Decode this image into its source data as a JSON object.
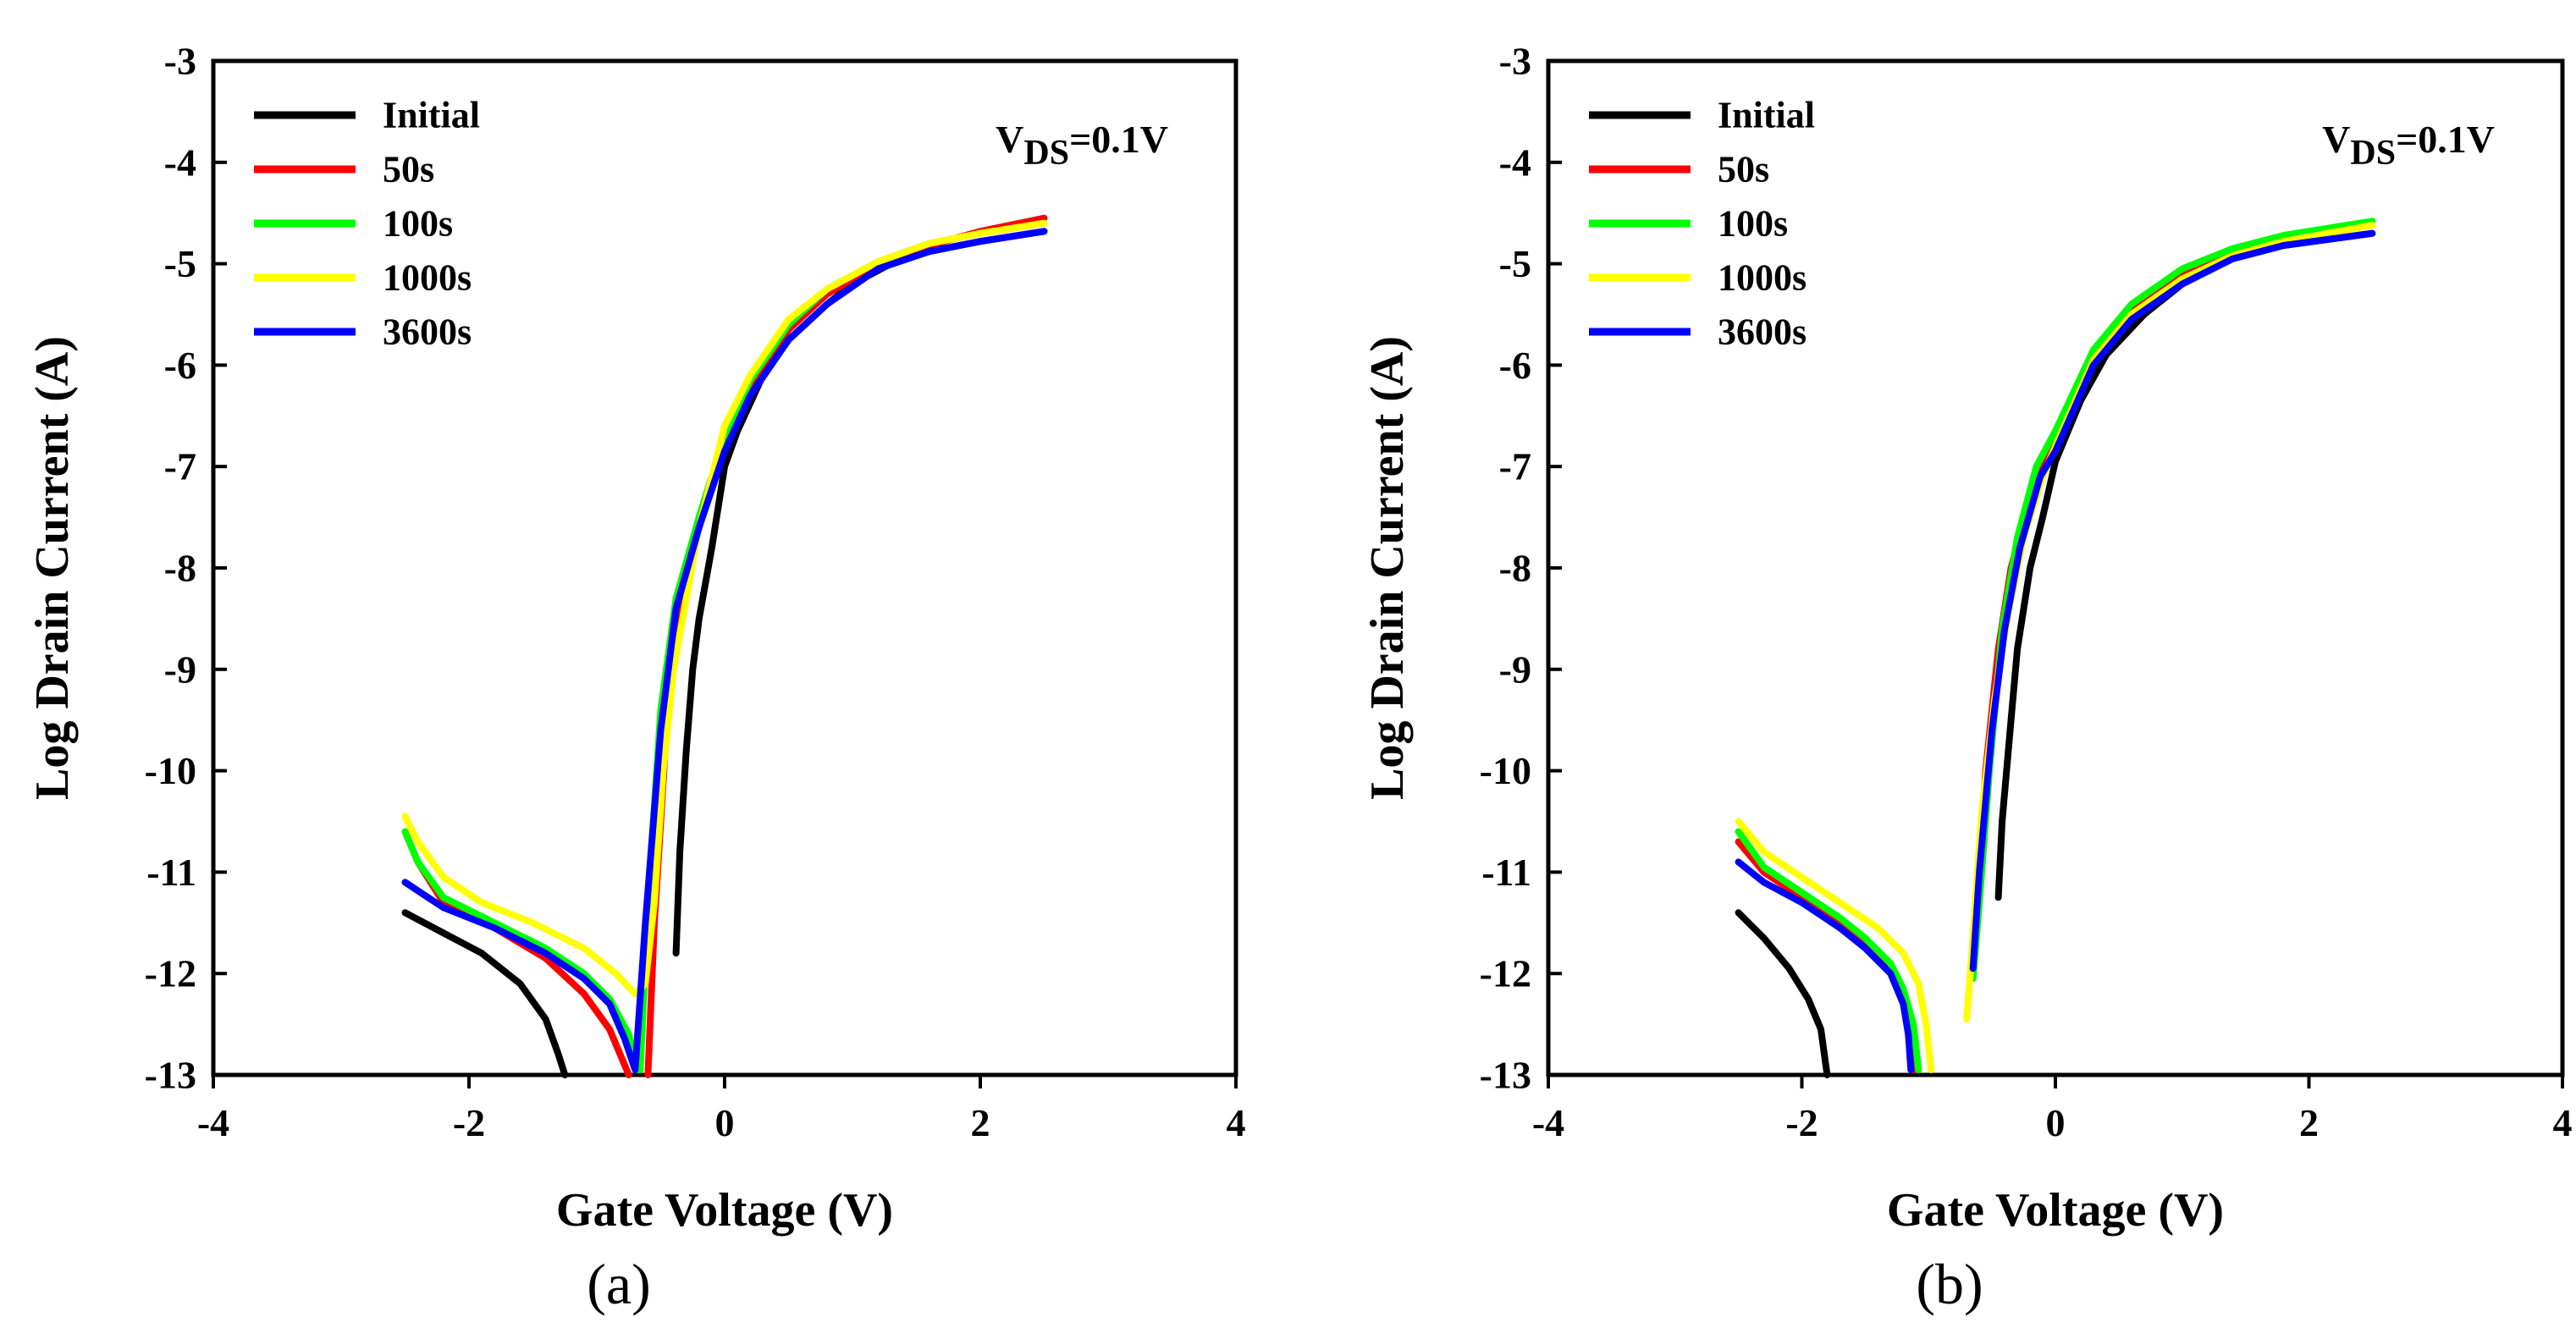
{
  "chart_data": [
    {
      "type": "line",
      "panel_label": "(a)",
      "xlabel": "Gate Voltage (V)",
      "ylabel": "Log Drain Current (A)",
      "xlim": [
        -4,
        4
      ],
      "ylim": [
        -13,
        -3
      ],
      "xticks": [
        -4,
        -2,
        0,
        2,
        4
      ],
      "yticks": [
        -3,
        -4,
        -5,
        -6,
        -7,
        -8,
        -9,
        -10,
        -11,
        -12,
        -13
      ],
      "grid": false,
      "legend_position": "top-left",
      "annotation": {
        "prefix": "V",
        "subscript": "DS",
        "suffix": "=0.1V"
      },
      "series": [
        {
          "name": "Initial",
          "color": "#000000",
          "points": [
            [
              -2.5,
              -11.4
            ],
            [
              -2.2,
              -11.6
            ],
            [
              -1.9,
              -11.8
            ],
            [
              -1.6,
              -12.1
            ],
            [
              -1.4,
              -12.45
            ],
            [
              -1.3,
              -12.8
            ],
            [
              -1.25,
              -13.0
            ],
            [
              null,
              null
            ],
            [
              -0.38,
              -11.8
            ],
            [
              -0.35,
              -10.8
            ],
            [
              -0.3,
              -9.8
            ],
            [
              -0.25,
              -9.0
            ],
            [
              -0.2,
              -8.5
            ],
            [
              -0.1,
              -7.8
            ],
            [
              0.0,
              -7.0
            ],
            [
              0.1,
              -6.65
            ],
            [
              0.3,
              -6.1
            ],
            [
              0.5,
              -5.75
            ],
            [
              0.8,
              -5.4
            ],
            [
              1.0,
              -5.2
            ],
            [
              1.3,
              -5.0
            ],
            [
              1.6,
              -4.88
            ],
            [
              2.0,
              -4.78
            ],
            [
              2.5,
              -4.68
            ]
          ]
        },
        {
          "name": "50s",
          "color": "#ff0000",
          "points": [
            [
              -2.5,
              -10.6
            ],
            [
              -2.4,
              -10.9
            ],
            [
              -2.2,
              -11.3
            ],
            [
              -1.8,
              -11.55
            ],
            [
              -1.4,
              -11.85
            ],
            [
              -1.1,
              -12.2
            ],
            [
              -0.9,
              -12.55
            ],
            [
              -0.75,
              -13.0
            ],
            [
              null,
              null
            ],
            [
              -0.6,
              -13.0
            ],
            [
              -0.55,
              -11.5
            ],
            [
              -0.45,
              -9.5
            ],
            [
              -0.35,
              -8.3
            ],
            [
              -0.2,
              -7.5
            ],
            [
              0.0,
              -6.7
            ],
            [
              0.2,
              -6.2
            ],
            [
              0.5,
              -5.65
            ],
            [
              0.8,
              -5.3
            ],
            [
              1.2,
              -5.0
            ],
            [
              1.6,
              -4.82
            ],
            [
              2.0,
              -4.68
            ],
            [
              2.5,
              -4.55
            ]
          ]
        },
        {
          "name": "100s",
          "color": "#00ff00",
          "points": [
            [
              -2.5,
              -10.6
            ],
            [
              -2.4,
              -10.9
            ],
            [
              -2.2,
              -11.25
            ],
            [
              -1.8,
              -11.5
            ],
            [
              -1.4,
              -11.75
            ],
            [
              -1.1,
              -12.0
            ],
            [
              -0.9,
              -12.25
            ],
            [
              -0.75,
              -12.6
            ],
            [
              -0.68,
              -12.95
            ],
            [
              null,
              null
            ],
            [
              -0.66,
              -12.95
            ],
            [
              -0.6,
              -11.3
            ],
            [
              -0.5,
              -9.4
            ],
            [
              -0.38,
              -8.3
            ],
            [
              -0.2,
              -7.5
            ],
            [
              0.0,
              -6.7
            ],
            [
              0.2,
              -6.15
            ],
            [
              0.5,
              -5.6
            ],
            [
              0.8,
              -5.25
            ],
            [
              1.2,
              -4.98
            ],
            [
              1.6,
              -4.8
            ],
            [
              2.0,
              -4.7
            ],
            [
              2.5,
              -4.6
            ]
          ]
        },
        {
          "name": "1000s",
          "color": "#ffff00",
          "points": [
            [
              -2.5,
              -10.45
            ],
            [
              -2.4,
              -10.7
            ],
            [
              -2.2,
              -11.05
            ],
            [
              -1.9,
              -11.3
            ],
            [
              -1.5,
              -11.5
            ],
            [
              -1.1,
              -11.75
            ],
            [
              -0.85,
              -12.0
            ],
            [
              -0.7,
              -12.2
            ],
            [
              -0.62,
              -12.1
            ],
            [
              -0.55,
              -11.3
            ],
            [
              -0.48,
              -10.0
            ],
            [
              -0.4,
              -9.0
            ],
            [
              -0.3,
              -8.3
            ],
            [
              -0.2,
              -7.6
            ],
            [
              0.0,
              -6.6
            ],
            [
              0.2,
              -6.1
            ],
            [
              0.5,
              -5.55
            ],
            [
              0.8,
              -5.25
            ],
            [
              1.2,
              -4.98
            ],
            [
              1.6,
              -4.8
            ],
            [
              2.0,
              -4.7
            ],
            [
              2.5,
              -4.6
            ]
          ]
        },
        {
          "name": "3600s",
          "color": "#0000ff",
          "points": [
            [
              -2.5,
              -11.1
            ],
            [
              -2.2,
              -11.35
            ],
            [
              -1.8,
              -11.55
            ],
            [
              -1.4,
              -11.8
            ],
            [
              -1.1,
              -12.05
            ],
            [
              -0.9,
              -12.3
            ],
            [
              -0.78,
              -12.65
            ],
            [
              -0.7,
              -12.95
            ],
            [
              -0.62,
              -11.5
            ],
            [
              -0.5,
              -9.6
            ],
            [
              -0.38,
              -8.4
            ],
            [
              -0.2,
              -7.6
            ],
            [
              0.0,
              -6.85
            ],
            [
              0.2,
              -6.3
            ],
            [
              0.5,
              -5.75
            ],
            [
              0.8,
              -5.4
            ],
            [
              1.2,
              -5.05
            ],
            [
              1.6,
              -4.88
            ],
            [
              2.0,
              -4.78
            ],
            [
              2.5,
              -4.68
            ]
          ]
        }
      ]
    },
    {
      "type": "line",
      "panel_label": "(b)",
      "xlabel": "Gate Voltage (V)",
      "ylabel": "Log Drain Current (A)",
      "xlim": [
        -4,
        4
      ],
      "ylim": [
        -13,
        -3
      ],
      "xticks": [
        -4,
        -2,
        0,
        2,
        4
      ],
      "yticks": [
        -3,
        -4,
        -5,
        -6,
        -7,
        -8,
        -9,
        -10,
        -11,
        -12,
        -13
      ],
      "grid": false,
      "legend_position": "top-left",
      "annotation": {
        "prefix": "V",
        "subscript": "DS",
        "suffix": "=0.1V"
      },
      "series": [
        {
          "name": "Initial",
          "color": "#000000",
          "points": [
            [
              -2.5,
              -11.4
            ],
            [
              -2.3,
              -11.65
            ],
            [
              -2.1,
              -11.95
            ],
            [
              -1.95,
              -12.25
            ],
            [
              -1.85,
              -12.55
            ],
            [
              -1.8,
              -13.0
            ],
            [
              null,
              null
            ],
            [
              -0.45,
              -11.25
            ],
            [
              -0.42,
              -10.5
            ],
            [
              -0.35,
              -9.5
            ],
            [
              -0.3,
              -8.8
            ],
            [
              -0.2,
              -8.0
            ],
            [
              -0.1,
              -7.5
            ],
            [
              0.0,
              -6.95
            ],
            [
              0.2,
              -6.35
            ],
            [
              0.4,
              -5.9
            ],
            [
              0.7,
              -5.5
            ],
            [
              1.0,
              -5.2
            ],
            [
              1.4,
              -4.95
            ],
            [
              1.8,
              -4.82
            ],
            [
              2.5,
              -4.7
            ]
          ]
        },
        {
          "name": "50s",
          "color": "#ff0000",
          "points": [
            [
              -2.5,
              -10.7
            ],
            [
              -2.3,
              -11.0
            ],
            [
              -2.0,
              -11.25
            ],
            [
              -1.7,
              -11.5
            ],
            [
              -1.5,
              -11.7
            ],
            [
              -1.3,
              -11.95
            ],
            [
              -1.2,
              -12.2
            ],
            [
              -1.15,
              -12.6
            ],
            [
              -1.12,
              -12.95
            ],
            [
              null,
              null
            ],
            [
              -0.62,
              -11.4
            ],
            [
              -0.55,
              -10.0
            ],
            [
              -0.45,
              -8.8
            ],
            [
              -0.35,
              -8.0
            ],
            [
              -0.2,
              -7.3
            ],
            [
              0.0,
              -6.75
            ],
            [
              0.3,
              -5.9
            ],
            [
              0.6,
              -5.45
            ],
            [
              1.0,
              -5.1
            ],
            [
              1.4,
              -4.88
            ],
            [
              1.8,
              -4.75
            ],
            [
              2.5,
              -4.62
            ]
          ]
        },
        {
          "name": "100s",
          "color": "#00ff00",
          "points": [
            [
              -2.5,
              -10.6
            ],
            [
              -2.3,
              -10.95
            ],
            [
              -2.0,
              -11.2
            ],
            [
              -1.7,
              -11.45
            ],
            [
              -1.5,
              -11.65
            ],
            [
              -1.3,
              -11.9
            ],
            [
              -1.2,
              -12.15
            ],
            [
              -1.12,
              -12.5
            ],
            [
              -1.08,
              -12.95
            ],
            [
              null,
              null
            ],
            [
              -0.65,
              -12.05
            ],
            [
              -0.6,
              -11.3
            ],
            [
              -0.52,
              -10.0
            ],
            [
              -0.42,
              -8.6
            ],
            [
              -0.3,
              -7.7
            ],
            [
              -0.15,
              -7.0
            ],
            [
              0.0,
              -6.65
            ],
            [
              0.3,
              -5.85
            ],
            [
              0.6,
              -5.4
            ],
            [
              1.0,
              -5.05
            ],
            [
              1.4,
              -4.85
            ],
            [
              1.8,
              -4.72
            ],
            [
              2.5,
              -4.58
            ]
          ]
        },
        {
          "name": "1000s",
          "color": "#ffff00",
          "points": [
            [
              -2.5,
              -10.5
            ],
            [
              -2.3,
              -10.8
            ],
            [
              -2.0,
              -11.05
            ],
            [
              -1.7,
              -11.3
            ],
            [
              -1.4,
              -11.55
            ],
            [
              -1.2,
              -11.8
            ],
            [
              -1.08,
              -12.1
            ],
            [
              -1.02,
              -12.5
            ],
            [
              -0.98,
              -12.95
            ],
            [
              null,
              null
            ],
            [
              -0.7,
              -12.45
            ],
            [
              -0.66,
              -11.8
            ],
            [
              -0.58,
              -10.4
            ],
            [
              -0.48,
              -9.3
            ],
            [
              -0.38,
              -8.5
            ],
            [
              -0.25,
              -7.7
            ],
            [
              -0.1,
              -7.1
            ],
            [
              0.0,
              -6.8
            ],
            [
              0.3,
              -5.95
            ],
            [
              0.6,
              -5.5
            ],
            [
              1.0,
              -5.15
            ],
            [
              1.4,
              -4.92
            ],
            [
              1.8,
              -4.78
            ],
            [
              2.5,
              -4.62
            ]
          ]
        },
        {
          "name": "3600s",
          "color": "#0000ff",
          "points": [
            [
              -2.5,
              -10.9
            ],
            [
              -2.3,
              -11.1
            ],
            [
              -2.0,
              -11.3
            ],
            [
              -1.7,
              -11.55
            ],
            [
              -1.5,
              -11.75
            ],
            [
              -1.3,
              -12.0
            ],
            [
              -1.2,
              -12.3
            ],
            [
              -1.16,
              -12.6
            ],
            [
              -1.14,
              -12.95
            ],
            [
              null,
              null
            ],
            [
              -0.65,
              -11.95
            ],
            [
              -0.6,
              -11.0
            ],
            [
              -0.5,
              -9.6
            ],
            [
              -0.4,
              -8.6
            ],
            [
              -0.28,
              -7.8
            ],
            [
              -0.12,
              -7.1
            ],
            [
              0.0,
              -6.85
            ],
            [
              0.3,
              -6.0
            ],
            [
              0.6,
              -5.55
            ],
            [
              1.0,
              -5.2
            ],
            [
              1.4,
              -4.95
            ],
            [
              1.8,
              -4.82
            ],
            [
              2.5,
              -4.7
            ]
          ]
        }
      ]
    }
  ]
}
